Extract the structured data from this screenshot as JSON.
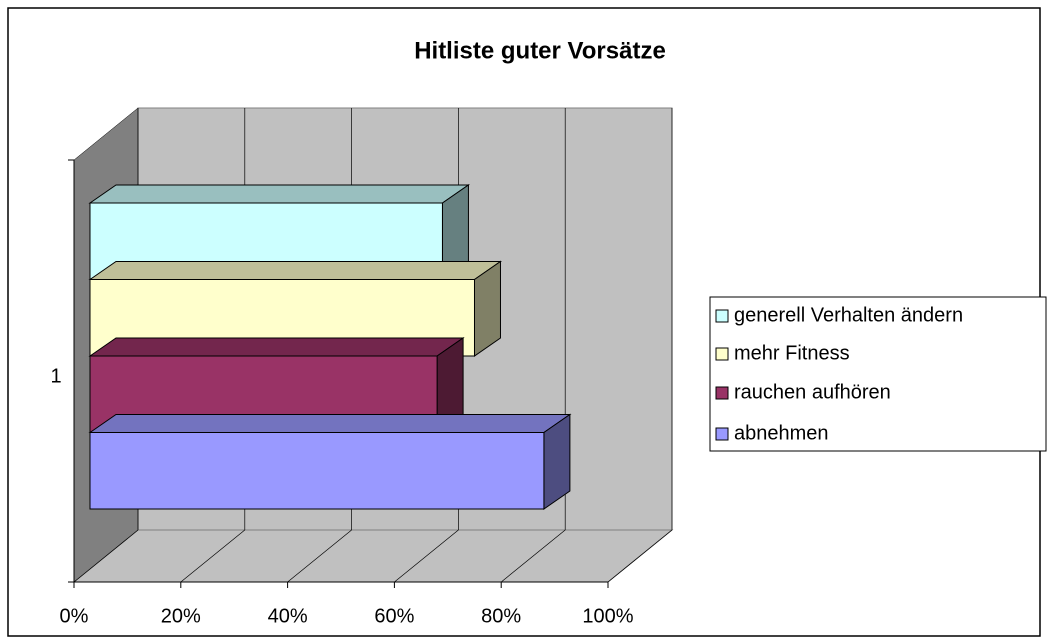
{
  "chart_data": {
    "type": "bar3d_horizontal",
    "title": "Hitliste guter Vorsätze",
    "categories": [
      "1"
    ],
    "series": [
      {
        "name": "generell Verhalten ändern",
        "color": "#ccffff",
        "values": [
          66
        ]
      },
      {
        "name": "mehr Fitness",
        "color": "#ffffcc",
        "values": [
          72
        ]
      },
      {
        "name": "rauchen aufhören",
        "color": "#993366",
        "values": [
          65
        ]
      },
      {
        "name": "abnehmen",
        "color": "#9999ff",
        "values": [
          85
        ]
      }
    ],
    "xlim": [
      0,
      100
    ],
    "xticks": [
      {
        "value": 0,
        "label": "0%"
      },
      {
        "value": 20,
        "label": "20%"
      },
      {
        "value": 40,
        "label": "40%"
      },
      {
        "value": 60,
        "label": "60%"
      },
      {
        "value": 80,
        "label": "80%"
      },
      {
        "value": 100,
        "label": "100%"
      }
    ],
    "grid": true,
    "legend": "right"
  }
}
